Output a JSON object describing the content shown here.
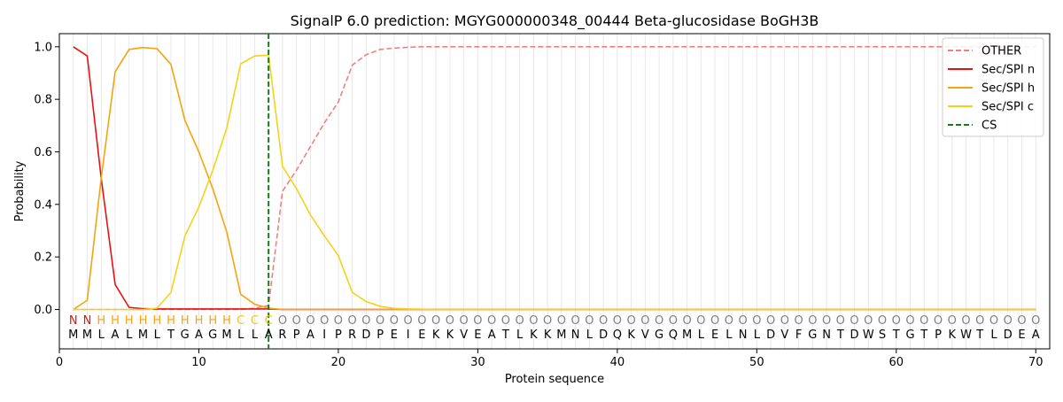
{
  "chart_data": {
    "type": "line",
    "title": "SignalP 6.0 prediction: MGYG000000348_00444 Beta-glucosidase BoGH3B",
    "xlabel": "Protein sequence",
    "ylabel": "Probability",
    "xlim": [
      0,
      71
    ],
    "ylim": [
      -0.15,
      1.05
    ],
    "xticks": [
      0,
      10,
      20,
      30,
      40,
      50,
      60,
      70
    ],
    "yticks": [
      0.0,
      0.2,
      0.4,
      0.6,
      0.8,
      1.0
    ],
    "grid": "vertical lines at each residue position",
    "legend_position": "top-right",
    "sequence": [
      "M",
      "M",
      "L",
      "A",
      "L",
      "M",
      "L",
      "T",
      "G",
      "A",
      "G",
      "M",
      "L",
      "L",
      "A",
      "R",
      "P",
      "A",
      "I",
      "P",
      "R",
      "D",
      "P",
      "E",
      "I",
      "E",
      "K",
      "K",
      "V",
      "E",
      "A",
      "T",
      "L",
      "K",
      "K",
      "M",
      "N",
      "L",
      "D",
      "Q",
      "K",
      "V",
      "G",
      "Q",
      "M",
      "L",
      "E",
      "L",
      "N",
      "L",
      "D",
      "V",
      "F",
      "G",
      "N",
      "T",
      "D",
      "W",
      "S",
      "T",
      "G",
      "T",
      "P",
      "K",
      "W",
      "T",
      "L",
      "D",
      "E",
      "A"
    ],
    "labels": [
      "N",
      "N",
      "H",
      "H",
      "H",
      "H",
      "H",
      "H",
      "H",
      "H",
      "H",
      "H",
      "C",
      "C",
      "C",
      "O",
      "O",
      "O",
      "O",
      "O",
      "O",
      "O",
      "O",
      "O",
      "O",
      "O",
      "O",
      "O",
      "O",
      "O",
      "O",
      "O",
      "O",
      "O",
      "O",
      "O",
      "O",
      "O",
      "O",
      "O",
      "O",
      "O",
      "O",
      "O",
      "O",
      "O",
      "O",
      "O",
      "O",
      "O",
      "O",
      "O",
      "O",
      "O",
      "O",
      "O",
      "O",
      "O",
      "O",
      "O",
      "O",
      "O",
      "O",
      "O",
      "O",
      "O",
      "O",
      "O",
      "O",
      "O"
    ],
    "label_colors": {
      "N": "#e8110f",
      "H": "#f5a40e",
      "C": "#f5c518",
      "O": "#808080"
    },
    "series": [
      {
        "name": "OTHER",
        "color": "#f08080",
        "style": "dashed",
        "values": [
          0.0,
          0.0,
          0.0,
          0.0,
          0.0,
          0.0,
          0.0,
          0.0,
          0.0,
          0.0,
          0.0,
          0.0,
          0.0,
          0.005,
          0.015,
          0.45,
          0.53,
          0.62,
          0.71,
          0.79,
          0.93,
          0.97,
          0.99,
          0.995,
          0.998,
          1.0,
          1.0,
          1.0,
          1.0,
          1.0,
          1.0,
          1.0,
          1.0,
          1.0,
          1.0,
          1.0,
          1.0,
          1.0,
          1.0,
          1.0,
          1.0,
          1.0,
          1.0,
          1.0,
          1.0,
          1.0,
          1.0,
          1.0,
          1.0,
          1.0,
          1.0,
          1.0,
          1.0,
          1.0,
          1.0,
          1.0,
          1.0,
          1.0,
          1.0,
          1.0,
          1.0,
          1.0,
          1.0,
          1.0,
          1.0,
          1.0,
          1.0,
          1.0,
          1.0,
          1.0
        ]
      },
      {
        "name": "Sec/SPI n",
        "color": "#e8110f",
        "style": "solid",
        "values": [
          1.0,
          0.965,
          0.5,
          0.095,
          0.008,
          0.003,
          0.002,
          0.002,
          0.002,
          0.002,
          0.002,
          0.002,
          0.002,
          0.002,
          0.002,
          0.0,
          0.0,
          0.0,
          0.0,
          0.0,
          0.0,
          0.0,
          0.0,
          0.0,
          0.0,
          0.0,
          0.0,
          0.0,
          0.0,
          0.0,
          0.0,
          0.0,
          0.0,
          0.0,
          0.0,
          0.0,
          0.0,
          0.0,
          0.0,
          0.0,
          0.0,
          0.0,
          0.0,
          0.0,
          0.0,
          0.0,
          0.0,
          0.0,
          0.0,
          0.0,
          0.0,
          0.0,
          0.0,
          0.0,
          0.0,
          0.0,
          0.0,
          0.0,
          0.0,
          0.0,
          0.0,
          0.0,
          0.0,
          0.0,
          0.0,
          0.0,
          0.0,
          0.0,
          0.0,
          0.0
        ]
      },
      {
        "name": "Sec/SPI h",
        "color": "#f5a40e",
        "style": "solid",
        "values": [
          0.0,
          0.035,
          0.5,
          0.905,
          0.99,
          0.997,
          0.993,
          0.933,
          0.72,
          0.6,
          0.46,
          0.295,
          0.058,
          0.02,
          0.005,
          0.0,
          0.0,
          0.0,
          0.0,
          0.0,
          0.0,
          0.0,
          0.0,
          0.0,
          0.0,
          0.0,
          0.0,
          0.0,
          0.0,
          0.0,
          0.0,
          0.0,
          0.0,
          0.0,
          0.0,
          0.0,
          0.0,
          0.0,
          0.0,
          0.0,
          0.0,
          0.0,
          0.0,
          0.0,
          0.0,
          0.0,
          0.0,
          0.0,
          0.0,
          0.0,
          0.0,
          0.0,
          0.0,
          0.0,
          0.0,
          0.0,
          0.0,
          0.0,
          0.0,
          0.0,
          0.0,
          0.0,
          0.0,
          0.0,
          0.0,
          0.0,
          0.0,
          0.0,
          0.0,
          0.0
        ]
      },
      {
        "name": "Sec/SPI c",
        "color": "#f5d21a",
        "style": "solid",
        "values": [
          0.0,
          0.0,
          0.0,
          0.0,
          0.0,
          0.0,
          0.005,
          0.065,
          0.28,
          0.39,
          0.53,
          0.69,
          0.935,
          0.965,
          0.968,
          0.545,
          0.46,
          0.36,
          0.28,
          0.205,
          0.065,
          0.03,
          0.012,
          0.004,
          0.002,
          0.001,
          0.0,
          0.0,
          0.0,
          0.0,
          0.0,
          0.0,
          0.0,
          0.0,
          0.0,
          0.0,
          0.0,
          0.0,
          0.0,
          0.0,
          0.0,
          0.0,
          0.0,
          0.0,
          0.0,
          0.0,
          0.0,
          0.0,
          0.0,
          0.0,
          0.0,
          0.0,
          0.0,
          0.0,
          0.0,
          0.0,
          0.0,
          0.0,
          0.0,
          0.0,
          0.0,
          0.0,
          0.0,
          0.0,
          0.0,
          0.0,
          0.0,
          0.0,
          0.0,
          0.0
        ]
      }
    ],
    "cleavage_site": {
      "name": "CS",
      "x": 15,
      "color": "#1a7a1a",
      "style": "dashed"
    }
  }
}
